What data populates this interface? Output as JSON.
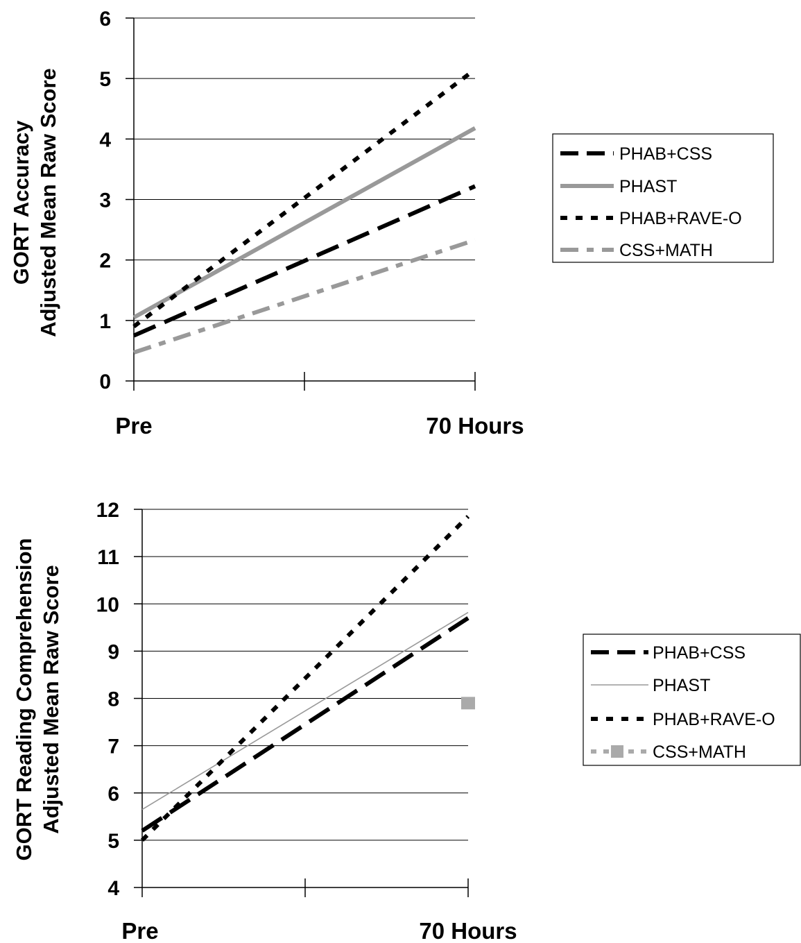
{
  "chart_data": [
    {
      "type": "line",
      "title": "",
      "xlabel": "",
      "ylabel": [
        "GORT Accuracy",
        "Adjusted Mean Raw Score"
      ],
      "categories": [
        "Pre",
        "70 Hours"
      ],
      "ylim": [
        0,
        6
      ],
      "yticks": [
        "0",
        "1",
        "2",
        "3",
        "4",
        "5",
        "6"
      ],
      "grid": true,
      "legend_position": "right",
      "series": [
        {
          "name": "PHAB+CSS",
          "values": [
            0.75,
            3.22
          ],
          "color": "#000000",
          "dash": "long-dash",
          "marker": "none"
        },
        {
          "name": "PHAST",
          "values": [
            1.05,
            4.18
          ],
          "color": "#999999",
          "dash": "solid",
          "marker": "none"
        },
        {
          "name": "PHAB+RAVE-O",
          "values": [
            0.9,
            5.15
          ],
          "color": "#000000",
          "dash": "dotted",
          "marker": "none"
        },
        {
          "name": "CSS+MATH",
          "values": [
            0.47,
            2.33
          ],
          "color": "#999999",
          "dash": "dash-dot",
          "marker": "none"
        }
      ]
    },
    {
      "type": "line",
      "title": "",
      "xlabel": "",
      "ylabel": [
        "GORT Reading Comprehension",
        "Adjusted Mean Raw Score"
      ],
      "categories": [
        "Pre",
        "70 Hours"
      ],
      "ylim": [
        4,
        12
      ],
      "yticks": [
        "4",
        "5",
        "6",
        "7",
        "8",
        "9",
        "10",
        "11",
        "12"
      ],
      "grid": true,
      "legend_position": "right",
      "series": [
        {
          "name": "PHAB+CSS",
          "values": [
            5.2,
            9.7
          ],
          "color": "#000000",
          "dash": "long-dash",
          "marker": "none"
        },
        {
          "name": "PHAST",
          "values": [
            5.65,
            9.82
          ],
          "color": "#999999",
          "dash": "solid-thin",
          "marker": "none"
        },
        {
          "name": "PHAB+RAVE-O",
          "values": [
            5.0,
            11.85
          ],
          "color": "#000000",
          "dash": "dotted",
          "marker": "none"
        },
        {
          "name": "CSS+MATH",
          "values": [
            null,
            7.9
          ],
          "color": "#aaaaaa",
          "dash": "dotted-square",
          "marker": "square"
        }
      ]
    }
  ]
}
